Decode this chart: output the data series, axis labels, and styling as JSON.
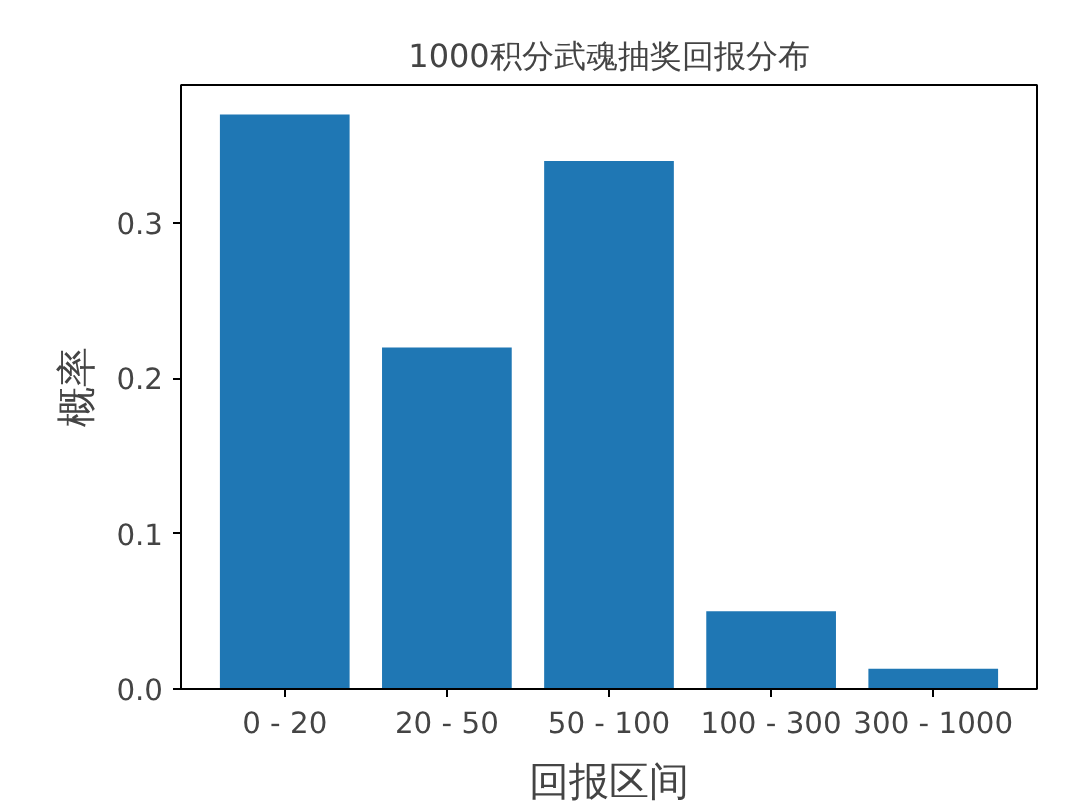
{
  "chart_data": {
    "type": "bar",
    "title": "1000积分武魂抽奖回报分布",
    "xlabel": "回报区间",
    "ylabel": "概率",
    "categories": [
      "0 - 20",
      "20 - 50",
      "50 - 100",
      "100 - 300",
      "300 - 1000"
    ],
    "values": [
      0.37,
      0.22,
      0.34,
      0.05,
      0.013
    ],
    "color": "#1f77b4",
    "ylim": [
      0,
      0.389
    ],
    "yticks": [
      {
        "value": 0,
        "label": "0.0"
      },
      {
        "value": 0.1,
        "label": "0.1"
      },
      {
        "value": 0.2,
        "label": "0.2"
      },
      {
        "value": 0.3,
        "label": "0.3"
      }
    ],
    "grid": false
  }
}
